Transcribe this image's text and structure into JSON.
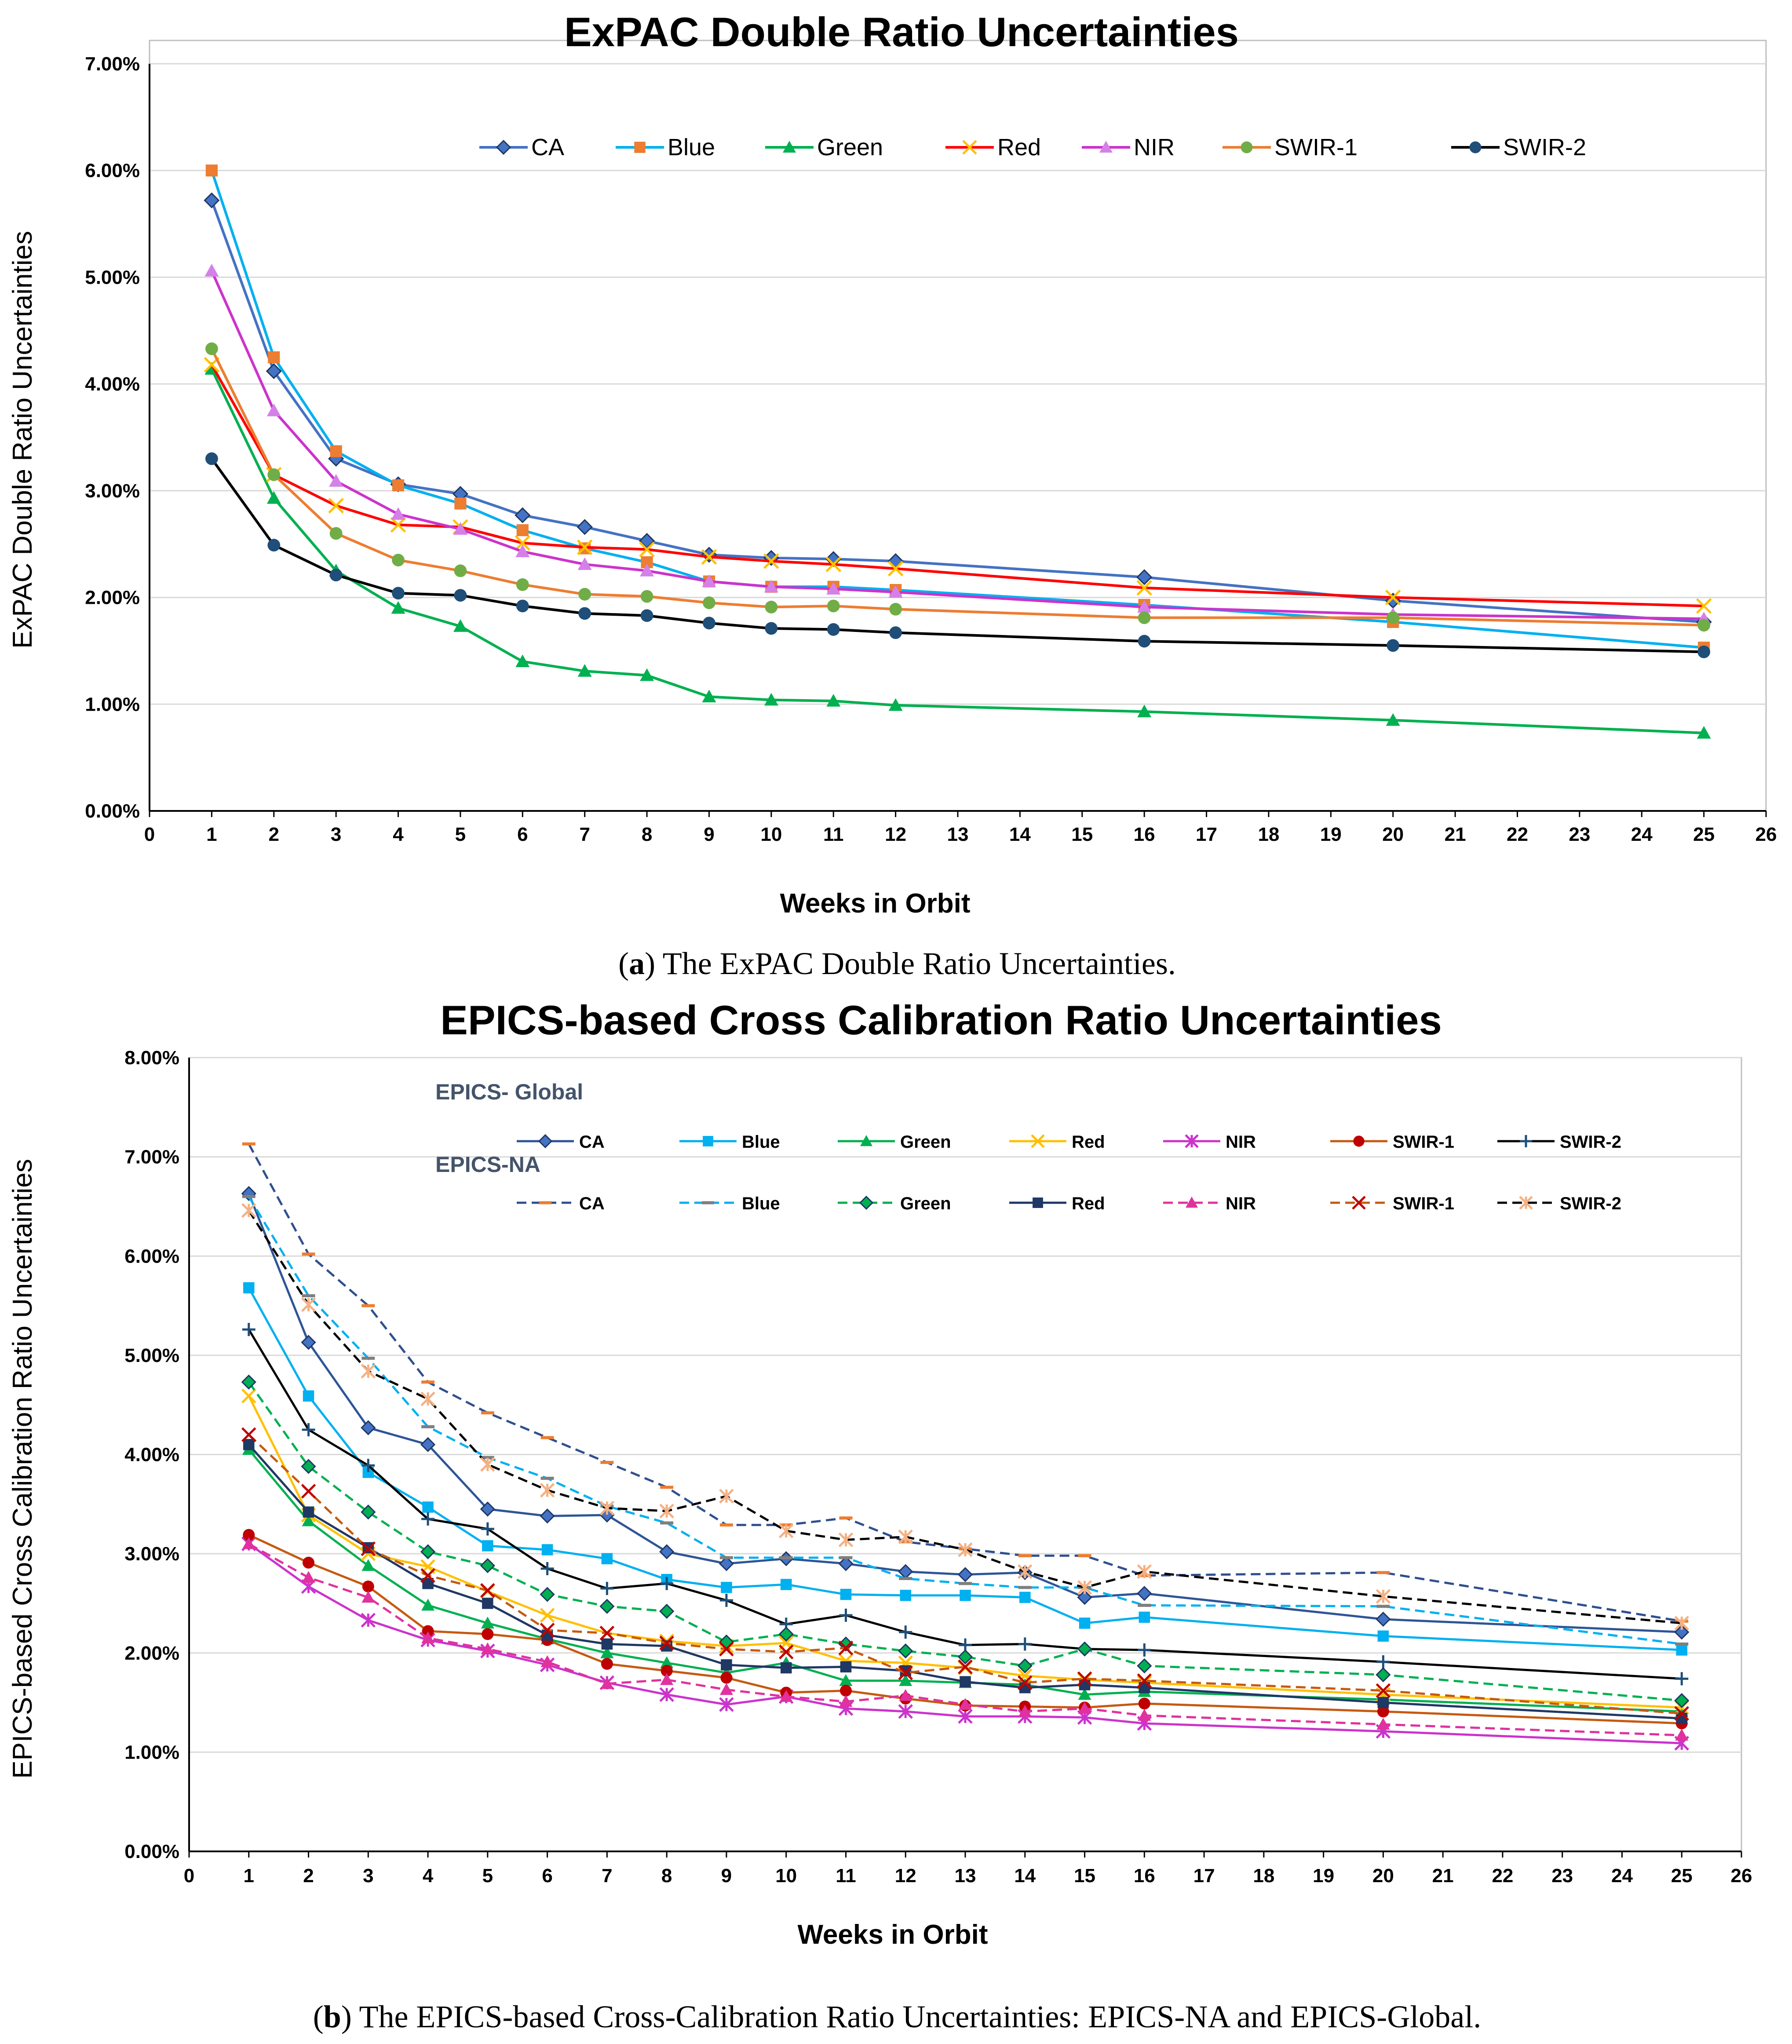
{
  "caption_a_letter": "a",
  "caption_a_text": ") The ExPAC Double Ratio Uncertainties.",
  "caption_b_letter": "b",
  "caption_b_text": ") The EPICS-based Cross-Calibration Ratio Uncertainties: EPICS-NA and EPICS-Global.",
  "chart_data": [
    {
      "type": "line",
      "title": "ExPAC Double Ratio Uncertainties",
      "xlabel": "Weeks in Orbit",
      "ylabel": "ExPAC Double Ratio Uncertainties",
      "xlim": [
        0,
        26
      ],
      "ylim": [
        0,
        7
      ],
      "xticks": [
        "0",
        "1",
        "2",
        "3",
        "4",
        "5",
        "6",
        "7",
        "8",
        "9",
        "10",
        "11",
        "12",
        "13",
        "14",
        "15",
        "16",
        "17",
        "18",
        "19",
        "20",
        "21",
        "22",
        "23",
        "24",
        "25",
        "26"
      ],
      "yticks": [
        "0.00%",
        "1.00%",
        "2.00%",
        "3.00%",
        "4.00%",
        "5.00%",
        "6.00%",
        "7.00%"
      ],
      "x": [
        1,
        2,
        3,
        4,
        5,
        6,
        7,
        8,
        9,
        10,
        11,
        12,
        16,
        20,
        25
      ],
      "legend_position": "top",
      "series": [
        {
          "name": "CA",
          "color": "#4472c4",
          "marker": "diamond",
          "values": [
            5.72,
            4.12,
            3.3,
            3.06,
            2.97,
            2.77,
            2.66,
            2.53,
            2.4,
            2.37,
            2.36,
            2.34,
            2.19,
            1.97,
            1.77
          ]
        },
        {
          "name": "Blue",
          "color": "#00b0f0",
          "marker": "square",
          "marker_color": "#ed7d31",
          "values": [
            6.0,
            4.25,
            3.37,
            3.05,
            2.88,
            2.63,
            2.46,
            2.33,
            2.15,
            2.1,
            2.1,
            2.07,
            1.93,
            1.77,
            1.53
          ]
        },
        {
          "name": "Green",
          "color": "#00b050",
          "marker": "triangle",
          "values": [
            4.14,
            2.93,
            2.25,
            1.9,
            1.73,
            1.4,
            1.31,
            1.27,
            1.07,
            1.04,
            1.03,
            0.99,
            0.93,
            0.85,
            0.73
          ]
        },
        {
          "name": "Red",
          "color": "#ff0000",
          "marker": "x",
          "marker_color": "#ffc000",
          "values": [
            4.18,
            3.15,
            2.86,
            2.68,
            2.66,
            2.51,
            2.47,
            2.45,
            2.38,
            2.34,
            2.31,
            2.27,
            2.09,
            2.0,
            1.92
          ]
        },
        {
          "name": "NIR",
          "color": "#cc33cc",
          "marker": "triangle",
          "marker_color": "#d580e8",
          "values": [
            5.06,
            3.75,
            3.09,
            2.78,
            2.64,
            2.43,
            2.31,
            2.25,
            2.15,
            2.1,
            2.08,
            2.05,
            1.91,
            1.84,
            1.8
          ]
        },
        {
          "name": "SWIR-1",
          "color": "#ed7d31",
          "marker": "circle",
          "marker_color": "#70ad47",
          "values": [
            4.33,
            3.15,
            2.6,
            2.35,
            2.25,
            2.12,
            2.03,
            2.01,
            1.95,
            1.91,
            1.92,
            1.89,
            1.81,
            1.81,
            1.74
          ]
        },
        {
          "name": "SWIR-2",
          "color": "#000000",
          "marker": "circle",
          "marker_color": "#1f4e79",
          "values": [
            3.3,
            2.49,
            2.21,
            2.04,
            2.02,
            1.92,
            1.85,
            1.83,
            1.76,
            1.71,
            1.7,
            1.67,
            1.59,
            1.55,
            1.49
          ]
        }
      ]
    },
    {
      "type": "line",
      "title": "EPICS-based Cross Calibration Ratio Uncertainties",
      "xlabel": "Weeks in Orbit",
      "ylabel": "EPICS-based Cross Calibration Ratio Uncertainties",
      "xlim": [
        0,
        26
      ],
      "ylim": [
        0,
        8
      ],
      "xticks": [
        "0",
        "1",
        "2",
        "3",
        "4",
        "5",
        "6",
        "7",
        "8",
        "9",
        "10",
        "11",
        "12",
        "13",
        "14",
        "15",
        "16",
        "17",
        "18",
        "19",
        "20",
        "21",
        "22",
        "23",
        "24",
        "25",
        "26"
      ],
      "yticks": [
        "0.00%",
        "1.00%",
        "2.00%",
        "3.00%",
        "4.00%",
        "5.00%",
        "6.00%",
        "7.00%",
        "8.00%"
      ],
      "x": [
        1,
        2,
        3,
        4,
        5,
        6,
        7,
        8,
        9,
        10,
        11,
        12,
        13,
        14,
        15,
        16,
        20,
        25
      ],
      "legend_groups": [
        "EPICS- Global",
        "EPICS-NA"
      ],
      "series": [
        {
          "group": "EPICS- Global",
          "name": "CA",
          "color": "#2e5597",
          "dash": false,
          "marker": "diamond",
          "marker_color": "#4472c4",
          "values": [
            6.63,
            5.13,
            4.27,
            4.1,
            3.45,
            3.38,
            3.39,
            3.02,
            2.9,
            2.95,
            2.9,
            2.82,
            2.79,
            2.81,
            2.56,
            2.6,
            2.34,
            2.21
          ]
        },
        {
          "group": "EPICS- Global",
          "name": "Blue",
          "color": "#00b0f0",
          "dash": false,
          "marker": "square",
          "marker_color": "#00b0f0",
          "values": [
            5.68,
            4.59,
            3.82,
            3.47,
            3.08,
            3.04,
            2.95,
            2.74,
            2.66,
            2.69,
            2.59,
            2.58,
            2.58,
            2.56,
            2.3,
            2.36,
            2.17,
            2.03
          ]
        },
        {
          "group": "EPICS- Global",
          "name": "Green",
          "color": "#00b050",
          "dash": false,
          "marker": "triangle",
          "marker_color": "#00b050",
          "values": [
            4.05,
            3.33,
            2.88,
            2.48,
            2.3,
            2.14,
            2.0,
            1.9,
            1.8,
            1.9,
            1.72,
            1.72,
            1.7,
            1.68,
            1.58,
            1.61,
            1.53,
            1.41
          ]
        },
        {
          "group": "EPICS- Global",
          "name": "Red",
          "color": "#ffc000",
          "dash": false,
          "marker": "x",
          "marker_color": "#ffc000",
          "values": [
            4.59,
            3.39,
            3.0,
            2.87,
            2.62,
            2.38,
            2.2,
            2.12,
            2.07,
            2.1,
            1.92,
            1.9,
            1.85,
            1.77,
            1.73,
            1.7,
            1.58,
            1.45
          ]
        },
        {
          "group": "EPICS- Global",
          "name": "NIR",
          "color": "#cc33cc",
          "dash": false,
          "marker": "asterisk",
          "marker_color": "#cc33cc",
          "values": [
            3.1,
            2.67,
            2.33,
            2.13,
            2.02,
            1.88,
            1.7,
            1.58,
            1.48,
            1.56,
            1.44,
            1.41,
            1.36,
            1.36,
            1.35,
            1.29,
            1.21,
            1.09
          ]
        },
        {
          "group": "EPICS- Global",
          "name": "SWIR-1",
          "color": "#c55a11",
          "dash": false,
          "marker": "circle",
          "marker_color": "#c00000",
          "values": [
            3.19,
            2.91,
            2.67,
            2.22,
            2.19,
            2.13,
            1.89,
            1.82,
            1.75,
            1.6,
            1.62,
            1.54,
            1.47,
            1.46,
            1.45,
            1.49,
            1.41,
            1.29
          ]
        },
        {
          "group": "EPICS- Global",
          "name": "SWIR-2",
          "color": "#000000",
          "dash": false,
          "marker": "plus",
          "marker_color": "#1f4e79",
          "values": [
            5.26,
            4.25,
            3.89,
            3.35,
            3.25,
            2.85,
            2.65,
            2.7,
            2.53,
            2.29,
            2.38,
            2.21,
            2.08,
            2.09,
            2.04,
            2.03,
            1.91,
            1.74
          ]
        },
        {
          "group": "EPICS-NA",
          "name": "CA",
          "color": "#2f4f8f",
          "dash": true,
          "marker": "dash",
          "marker_color": "#ed7d31",
          "values": [
            7.13,
            6.02,
            5.5,
            4.73,
            4.42,
            4.17,
            3.92,
            3.67,
            3.29,
            3.29,
            3.36,
            3.12,
            3.05,
            2.98,
            2.98,
            2.78,
            2.81,
            2.32
          ]
        },
        {
          "group": "EPICS-NA",
          "name": "Blue",
          "color": "#00b0f0",
          "dash": true,
          "marker": "dash",
          "marker_color": "#7f7f7f",
          "values": [
            6.6,
            5.6,
            4.97,
            4.28,
            3.97,
            3.76,
            3.48,
            3.31,
            2.96,
            2.96,
            2.96,
            2.75,
            2.7,
            2.66,
            2.66,
            2.48,
            2.47,
            2.09
          ]
        },
        {
          "group": "EPICS-NA",
          "name": "Green",
          "color": "#00b050",
          "dash": true,
          "marker": "diamond",
          "marker_color": "#00b050",
          "values": [
            4.73,
            3.88,
            3.42,
            3.02,
            2.88,
            2.59,
            2.47,
            2.42,
            2.11,
            2.19,
            2.09,
            2.02,
            1.96,
            1.87,
            2.04,
            1.87,
            1.78,
            1.52
          ]
        },
        {
          "group": "EPICS-NA",
          "name": "Red",
          "color": "#1f3864",
          "dash": false,
          "marker": "square",
          "marker_color": "#1f3864",
          "values": [
            4.1,
            3.42,
            3.06,
            2.7,
            2.5,
            2.18,
            2.09,
            2.07,
            1.88,
            1.85,
            1.86,
            1.82,
            1.71,
            1.65,
            1.68,
            1.65,
            1.5,
            1.34
          ]
        },
        {
          "group": "EPICS-NA",
          "name": "NIR",
          "color": "#e0319e",
          "dash": true,
          "marker": "triangle",
          "marker_color": "#e0319e",
          "values": [
            3.1,
            2.76,
            2.56,
            2.15,
            2.04,
            1.91,
            1.69,
            1.73,
            1.63,
            1.56,
            1.51,
            1.57,
            1.48,
            1.41,
            1.44,
            1.37,
            1.28,
            1.17
          ]
        },
        {
          "group": "EPICS-NA",
          "name": "SWIR-1",
          "color": "#c55a11",
          "dash": true,
          "marker": "x",
          "marker_color": "#c00000",
          "values": [
            4.2,
            3.63,
            3.05,
            2.78,
            2.63,
            2.23,
            2.2,
            2.1,
            2.04,
            2.01,
            2.05,
            1.8,
            1.86,
            1.7,
            1.74,
            1.72,
            1.62,
            1.39
          ]
        },
        {
          "group": "EPICS-NA",
          "name": "SWIR-2",
          "color": "#000000",
          "dash": true,
          "marker": "asterisk",
          "marker_color": "#f4b183",
          "values": [
            6.46,
            5.51,
            4.84,
            4.56,
            3.9,
            3.64,
            3.46,
            3.43,
            3.58,
            3.23,
            3.14,
            3.17,
            3.04,
            2.82,
            2.66,
            2.82,
            2.57,
            2.3
          ]
        }
      ]
    }
  ]
}
